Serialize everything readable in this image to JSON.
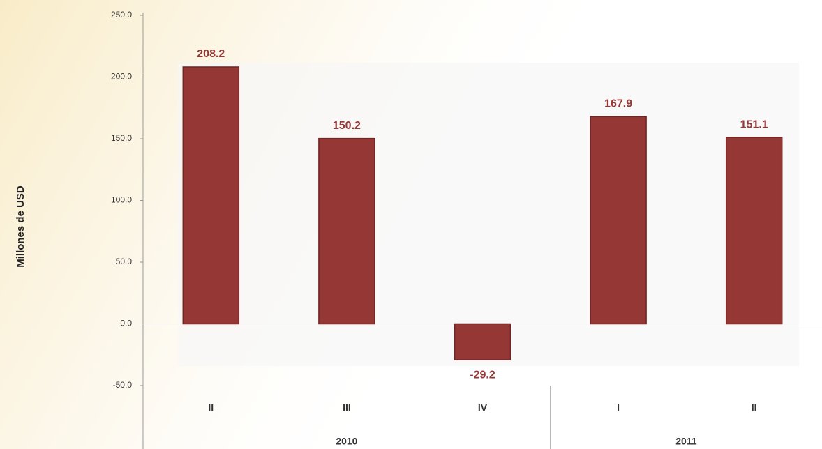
{
  "chart_data": {
    "type": "bar",
    "y_label": "Millones de USD",
    "groups": [
      {
        "label": "2010",
        "categories": [
          "II",
          "III",
          "IV"
        ]
      },
      {
        "label": "2011",
        "categories": [
          "I",
          "II"
        ]
      }
    ],
    "values": [
      208.2,
      150.2,
      -29.2,
      167.9,
      151.1
    ],
    "color": "#953735",
    "ylim": [
      -50,
      250
    ],
    "yticks": [
      {
        "value": -50,
        "label": "-50.0"
      },
      {
        "value": 0,
        "label": "0.0"
      },
      {
        "value": 50,
        "label": "50.0"
      },
      {
        "value": 100,
        "label": "100.0"
      },
      {
        "value": 150,
        "label": "150.0"
      },
      {
        "value": 200,
        "label": "200.0"
      },
      {
        "value": 250,
        "label": "250.0"
      }
    ]
  }
}
